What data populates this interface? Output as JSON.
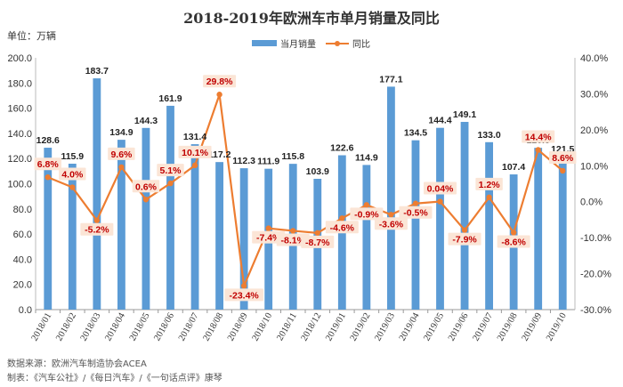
{
  "chart_data": {
    "type": "bar+line",
    "title": "2018-2019年欧洲车市单月销量及同比",
    "unit_label": "单位：万辆",
    "categories": [
      "2018/01",
      "2018/02",
      "2018/03",
      "2018/04",
      "2018/05",
      "2018/06",
      "2018/07",
      "2018/08",
      "2018/09",
      "2018/10",
      "2018/11",
      "2018/12",
      "2019/01",
      "2019/02",
      "2019/03",
      "2019/04",
      "2019/05",
      "2019/06",
      "2019/07",
      "2019/08",
      "2019/09",
      "2019/10"
    ],
    "series": [
      {
        "name": "当月销量",
        "type": "bar",
        "axis": "left",
        "values": [
          128.6,
          115.9,
          183.7,
          134.9,
          144.3,
          161.9,
          131.4,
          117.2,
          112.3,
          111.9,
          115.8,
          103.9,
          122.6,
          114.9,
          177.1,
          134.5,
          144.4,
          149.1,
          133.0,
          107.4,
          128.5,
          121.5
        ],
        "labels": [
          "128.6",
          "115.9",
          "183.7",
          "134.9",
          "144.3",
          "161.9",
          "131.4",
          "117.2",
          "112.3",
          "111.9",
          "115.8",
          "103.9",
          "122.6",
          "114.9",
          "177.1",
          "134.5",
          "144.4",
          "149.1",
          "133.0",
          "107.4",
          "128.5",
          "121.5"
        ]
      },
      {
        "name": "同比",
        "type": "line",
        "axis": "right",
        "values": [
          6.8,
          4.0,
          -5.2,
          9.6,
          0.6,
          5.1,
          10.1,
          29.8,
          -23.4,
          -7.4,
          -8.1,
          -8.7,
          -4.6,
          -0.9,
          -3.6,
          -0.5,
          0.04,
          -7.9,
          1.2,
          -8.6,
          14.4,
          8.6
        ],
        "labels": [
          "6.8%",
          "4.0%",
          "-5.2%",
          "9.6%",
          "0.6%",
          "5.1%",
          "10.1%",
          "29.8%",
          "-23.4%",
          "-7.4%",
          "-8.1%",
          "-8.7%",
          "-4.6%",
          "-0.9%",
          "-3.6%",
          "-0.5%",
          "0.04%",
          "-7.9%",
          "1.2%",
          "-8.6%",
          "14.4%",
          "8.6%"
        ]
      }
    ],
    "y_left": {
      "min": 0,
      "max": 200,
      "step": 20,
      "tick_labels": [
        "0.0",
        "20.0",
        "40.0",
        "60.0",
        "80.0",
        "100.0",
        "120.0",
        "140.0",
        "160.0",
        "180.0",
        "200.0"
      ]
    },
    "y_right": {
      "min": -30,
      "max": 40,
      "step": 10,
      "tick_labels": [
        "-30.0%",
        "-20.0%",
        "-10.0%",
        "0.0%",
        "10.0%",
        "20.0%",
        "30.0%",
        "40.0%"
      ]
    },
    "legend_position": "top-center",
    "grid": false,
    "colors": {
      "bar": "#5b9bd5",
      "line": "#ed7d31",
      "pct_text": "#c00000",
      "label_box": "#fbe5d6"
    }
  },
  "footer": {
    "source": "数据来源：欧洲汽车制造协会ACEA",
    "credit": "制表：《汽车公社》/《每日汽车》/《一句话点评》康琴"
  }
}
